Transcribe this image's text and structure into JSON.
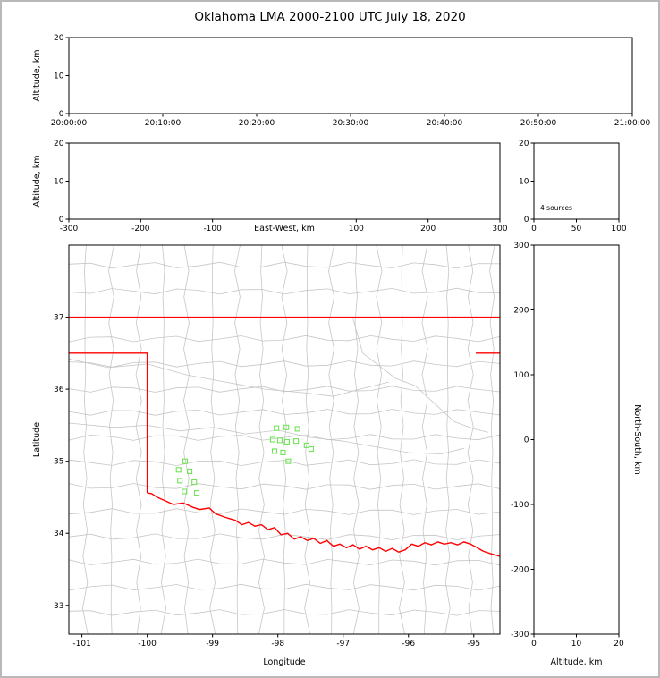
{
  "title": "Oklahoma LMA 2000-2100 UTC July 18, 2020",
  "colors": {
    "background": "#ffffff",
    "frame_border": "#b9b9b9",
    "panel_border": "#000000",
    "tick_text": "#000000",
    "county_line": "#c6c6c6",
    "river_line": "#c6c6c6",
    "state_border": "#ff0000",
    "source_marker": "#6fe356"
  },
  "chart_data": [
    {
      "id": "time_height",
      "type": "scatter",
      "ylabel": "Altitude, km",
      "ylim": [
        0,
        20
      ],
      "yticks": [
        0,
        10,
        20
      ],
      "xlim_labels": [
        "20:00:00",
        "20:10:00",
        "20:20:00",
        "20:30:00",
        "20:40:00",
        "20:50:00",
        "21:00:00"
      ],
      "points": []
    },
    {
      "id": "ew_height",
      "type": "scatter",
      "xlabel": "East-West, km",
      "xlabel_inline": true,
      "xlabel_at": 0,
      "xlim": [
        -300,
        300
      ],
      "xticks": [
        -300,
        -200,
        -100,
        100,
        200,
        300
      ],
      "ylabel": "Altitude, km",
      "ylim": [
        0,
        20
      ],
      "yticks": [
        0,
        10,
        20
      ],
      "points": []
    },
    {
      "id": "alt_histogram",
      "type": "line",
      "annotation": "4 sources",
      "xlim": [
        0,
        100
      ],
      "xticks": [
        0,
        50,
        100
      ],
      "ylim": [
        0,
        20
      ],
      "yticks": [
        0,
        10,
        20
      ],
      "points": []
    },
    {
      "id": "plan_view_map",
      "type": "scatter",
      "xlabel": "Longitude",
      "ylabel": "Latitude",
      "xlim": [
        -101.2,
        -94.6
      ],
      "ylim": [
        32.6,
        38.0
      ],
      "xticks": [
        -101,
        -100,
        -99,
        -98,
        -97,
        -96,
        -95
      ],
      "yticks": [
        33,
        34,
        35,
        36,
        37
      ],
      "marker": "open-square",
      "sources_lon_lat": [
        [
          -98.02,
          35.46
        ],
        [
          -97.87,
          35.47
        ],
        [
          -97.7,
          35.45
        ],
        [
          -98.08,
          35.3
        ],
        [
          -97.97,
          35.29
        ],
        [
          -97.86,
          35.27
        ],
        [
          -97.72,
          35.28
        ],
        [
          -98.05,
          35.14
        ],
        [
          -97.92,
          35.12
        ],
        [
          -97.56,
          35.22
        ],
        [
          -97.49,
          35.17
        ],
        [
          -97.84,
          35.0
        ],
        [
          -99.42,
          35.0
        ],
        [
          -99.52,
          34.88
        ],
        [
          -99.35,
          34.86
        ],
        [
          -99.5,
          34.73
        ],
        [
          -99.28,
          34.71
        ],
        [
          -99.43,
          34.58
        ],
        [
          -99.24,
          34.56
        ]
      ]
    },
    {
      "id": "ns_height",
      "type": "scatter",
      "xlabel": "Altitude, km",
      "ylabel": "North-South, km",
      "ylabel_right": true,
      "xlim": [
        0,
        20
      ],
      "xticks": [
        0,
        10,
        20
      ],
      "ylim": [
        -300,
        300
      ],
      "yticks": [
        -300,
        -200,
        -100,
        0,
        100,
        200,
        300
      ],
      "points": []
    }
  ],
  "map": {
    "state_border_red": {
      "north_lat": 37.0,
      "panhandle_south_lat": 36.5,
      "panhandle_east_lon": -100.0,
      "west_meridian_lon": -100.0,
      "meridian_south_lat": 34.56,
      "mo_ar_segment": {
        "lat": 36.5,
        "lon_from": -94.97,
        "lon_to": -94.6
      },
      "red_river_lon_lat": [
        [
          -100.0,
          34.56
        ],
        [
          -99.93,
          34.55
        ],
        [
          -99.85,
          34.5
        ],
        [
          -99.72,
          34.45
        ],
        [
          -99.6,
          34.4
        ],
        [
          -99.45,
          34.42
        ],
        [
          -99.3,
          34.36
        ],
        [
          -99.2,
          34.33
        ],
        [
          -99.05,
          34.35
        ],
        [
          -98.95,
          34.27
        ],
        [
          -98.8,
          34.22
        ],
        [
          -98.65,
          34.18
        ],
        [
          -98.55,
          34.12
        ],
        [
          -98.45,
          34.15
        ],
        [
          -98.35,
          34.1
        ],
        [
          -98.25,
          34.12
        ],
        [
          -98.15,
          34.05
        ],
        [
          -98.05,
          34.08
        ],
        [
          -97.95,
          33.98
        ],
        [
          -97.85,
          34.0
        ],
        [
          -97.75,
          33.92
        ],
        [
          -97.65,
          33.95
        ],
        [
          -97.55,
          33.9
        ],
        [
          -97.45,
          33.93
        ],
        [
          -97.35,
          33.86
        ],
        [
          -97.25,
          33.9
        ],
        [
          -97.15,
          33.82
        ],
        [
          -97.05,
          33.85
        ],
        [
          -96.95,
          33.8
        ],
        [
          -96.85,
          33.84
        ],
        [
          -96.75,
          33.78
        ],
        [
          -96.65,
          33.82
        ],
        [
          -96.55,
          33.77
        ],
        [
          -96.45,
          33.8
        ],
        [
          -96.35,
          33.75
        ],
        [
          -96.25,
          33.79
        ],
        [
          -96.15,
          33.74
        ],
        [
          -96.05,
          33.77
        ],
        [
          -95.95,
          33.85
        ],
        [
          -95.85,
          33.82
        ],
        [
          -95.75,
          33.87
        ],
        [
          -95.65,
          33.84
        ],
        [
          -95.55,
          33.88
        ],
        [
          -95.45,
          33.85
        ],
        [
          -95.35,
          33.87
        ],
        [
          -95.25,
          33.84
        ],
        [
          -95.15,
          33.88
        ],
        [
          -95.05,
          33.85
        ],
        [
          -94.95,
          33.8
        ],
        [
          -94.85,
          33.75
        ],
        [
          -94.75,
          33.72
        ],
        [
          -94.6,
          33.68
        ]
      ]
    },
    "county_grid": {
      "lon_lines": [
        -100.95,
        -100.55,
        -100.13,
        -99.75,
        -99.4,
        -99.0,
        -98.62,
        -98.25,
        -97.9,
        -97.55,
        -97.18,
        -96.8,
        -96.45,
        -96.1,
        -95.75,
        -95.4,
        -95.05,
        -94.72
      ],
      "lat_lines": [
        37.72,
        37.36,
        36.7,
        36.35,
        36.0,
        35.68,
        35.33,
        34.98,
        34.65,
        34.3,
        33.95,
        33.6,
        33.25,
        32.9
      ],
      "jitter_deg": 0.042
    },
    "rivers_lon_lat": [
      [
        [
          -101.2,
          35.53
        ],
        [
          -100.5,
          35.47
        ],
        [
          -100.0,
          35.5
        ],
        [
          -99.5,
          35.42
        ],
        [
          -99.0,
          35.47
        ],
        [
          -98.5,
          35.38
        ],
        [
          -98.0,
          35.43
        ],
        [
          -97.5,
          35.33
        ],
        [
          -97.0,
          35.28
        ],
        [
          -96.5,
          35.2
        ],
        [
          -96.0,
          35.12
        ],
        [
          -95.5,
          35.1
        ],
        [
          -95.15,
          35.18
        ]
      ],
      [
        [
          -101.2,
          36.42
        ],
        [
          -100.6,
          36.3
        ],
        [
          -100.0,
          36.35
        ],
        [
          -99.4,
          36.2
        ],
        [
          -98.8,
          36.1
        ],
        [
          -98.2,
          36.0
        ],
        [
          -97.6,
          35.95
        ],
        [
          -97.15,
          35.9
        ],
        [
          -96.75,
          36.0
        ],
        [
          -96.3,
          36.1
        ]
      ],
      [
        [
          -96.85,
          36.98
        ],
        [
          -96.7,
          36.5
        ],
        [
          -96.2,
          36.15
        ],
        [
          -95.9,
          36.05
        ],
        [
          -95.6,
          35.8
        ],
        [
          -95.3,
          35.55
        ],
        [
          -95.0,
          35.45
        ],
        [
          -94.78,
          35.4
        ]
      ]
    ]
  }
}
